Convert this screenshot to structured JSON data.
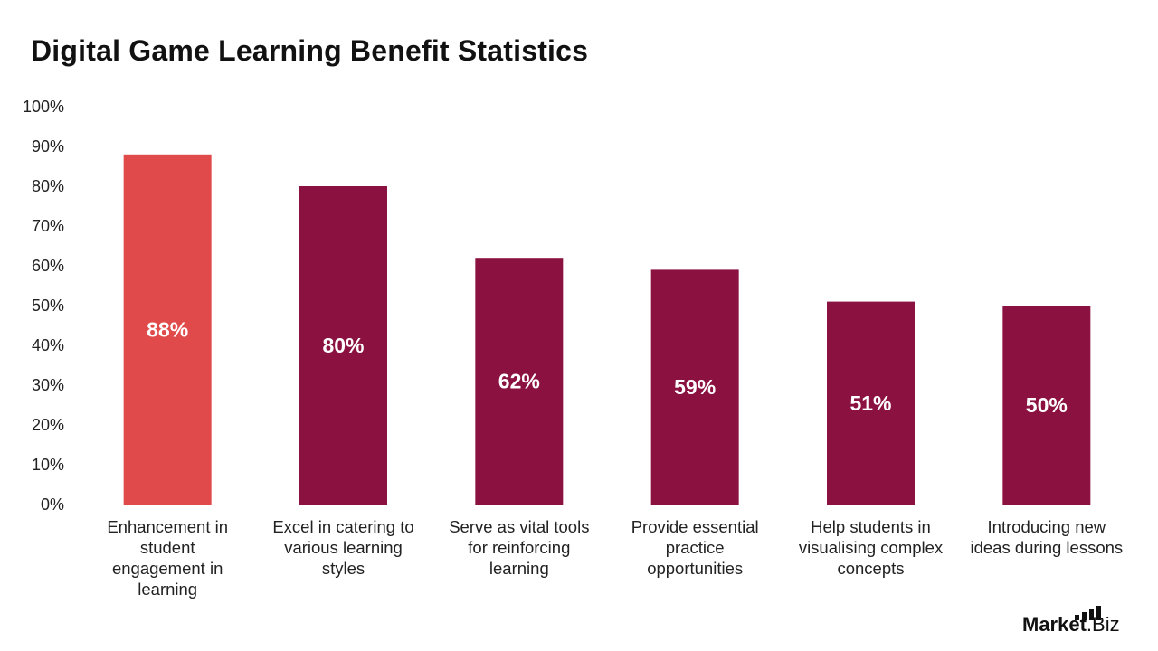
{
  "chart_data": {
    "type": "bar",
    "title": "Digital Game Learning Benefit Statistics",
    "xlabel": "",
    "ylabel": "",
    "ylim": [
      0,
      100
    ],
    "yticks": [
      "0%",
      "10%",
      "20%",
      "30%",
      "40%",
      "50%",
      "60%",
      "70%",
      "80%",
      "90%",
      "100%"
    ],
    "categories": [
      "Enhancement in student engagement in learning",
      "Excel in catering to various learning styles",
      "Serve as vital tools for reinforcing learning",
      "Provide essential practice opportunities",
      "Help students in visualising complex concepts",
      "Introducing new ideas during lessons"
    ],
    "category_lines": [
      [
        "Enhancement in",
        "student",
        "engagement in",
        "learning"
      ],
      [
        "Excel in catering to",
        "various learning",
        "styles"
      ],
      [
        "Serve as vital tools",
        "for reinforcing",
        "learning"
      ],
      [
        "Provide essential",
        "practice",
        "opportunities"
      ],
      [
        "Help students in",
        "visualising complex",
        "concepts"
      ],
      [
        "Introducing new",
        "ideas during lessons"
      ]
    ],
    "values": [
      88,
      80,
      62,
      59,
      51,
      50
    ],
    "data_labels": [
      "88%",
      "80%",
      "62%",
      "59%",
      "51%",
      "50%"
    ],
    "bar_colors": [
      "#E04A4A",
      "#8B1240",
      "#8B1240",
      "#8B1240",
      "#8B1240",
      "#8B1240"
    ],
    "grid": false,
    "legend": "none"
  },
  "branding": {
    "logo_word": "Market",
    "logo_suffix": ".Biz"
  }
}
